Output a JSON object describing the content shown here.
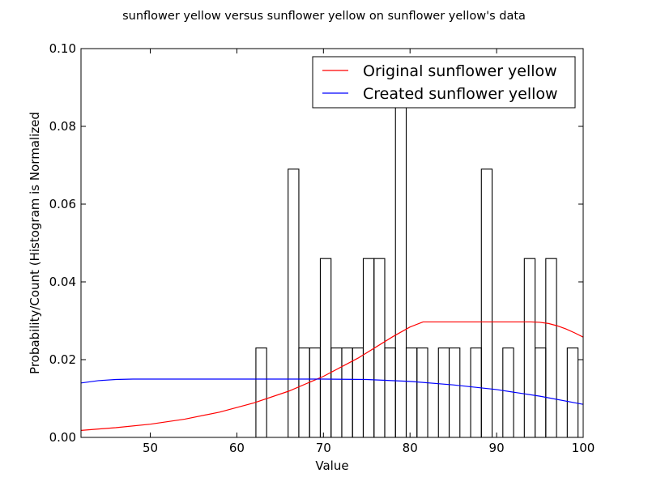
{
  "chart_data": {
    "type": "bar",
    "title": "sunflower yellow versus sunflower yellow on sunflower yellow's data",
    "xlabel": "Value",
    "ylabel": "Probability/Count (Histogram is Normalized",
    "xlim": [
      42,
      100
    ],
    "ylim": [
      0,
      0.1
    ],
    "x_ticks": [
      50,
      60,
      70,
      80,
      90,
      100
    ],
    "x_tick_labels": [
      "50",
      "60",
      "70",
      "80",
      "90",
      "100"
    ],
    "y_ticks": [
      0,
      0.02,
      0.04,
      0.06,
      0.08,
      0.1
    ],
    "y_tick_labels": [
      "0.00",
      "0.02",
      "0.04",
      "0.06",
      "0.08",
      "0.10"
    ],
    "grid": false,
    "legend_position": "top-right",
    "histogram": {
      "bin_edges": [
        62.2,
        63.44,
        64.68,
        65.92,
        67.16,
        68.4,
        69.64,
        70.88,
        72.12,
        73.36,
        74.6,
        75.84,
        77.08,
        78.32,
        79.56,
        80.8,
        82.04,
        83.28,
        84.52,
        85.76,
        87.0,
        88.24,
        89.48,
        90.72,
        91.96,
        93.2,
        94.44,
        95.68,
        96.92,
        98.16,
        99.4
      ],
      "values": [
        0.023,
        0,
        0,
        0.069,
        0.023,
        0.023,
        0.046,
        0.023,
        0.023,
        0.023,
        0.046,
        0.046,
        0.023,
        0.092,
        0.023,
        0.023,
        0,
        0.023,
        0.023,
        0,
        0.023,
        0.069,
        0,
        0.023,
        0,
        0.046,
        0.023,
        0.046,
        0,
        0.023
      ],
      "color": "#000000"
    },
    "series": [
      {
        "name": "Original sunflower yellow",
        "color": "#ff0000",
        "x": [
          42,
          46,
          50,
          54,
          58,
          62,
          66,
          70,
          74,
          78,
          80,
          81.5,
          82,
          86,
          90,
          94,
          95,
          96,
          97,
          98,
          99,
          100
        ],
        "y": [
          0.0018,
          0.0025,
          0.0034,
          0.0047,
          0.0065,
          0.0089,
          0.0119,
          0.0157,
          0.0204,
          0.0259,
          0.0284,
          0.0297,
          0.0297,
          0.0297,
          0.0297,
          0.0297,
          0.0296,
          0.0293,
          0.0287,
          0.0279,
          0.0269,
          0.0258
        ]
      },
      {
        "name": "Created sunflower yellow",
        "color": "#0000ff",
        "x": [
          42,
          44,
          46,
          48,
          50,
          55,
          60,
          65,
          70,
          75,
          80,
          85,
          90,
          95,
          100
        ],
        "y": [
          0.014,
          0.0146,
          0.0149,
          0.015,
          0.015,
          0.015,
          0.015,
          0.015,
          0.015,
          0.0149,
          0.0144,
          0.0135,
          0.0123,
          0.0106,
          0.0085
        ]
      }
    ]
  }
}
